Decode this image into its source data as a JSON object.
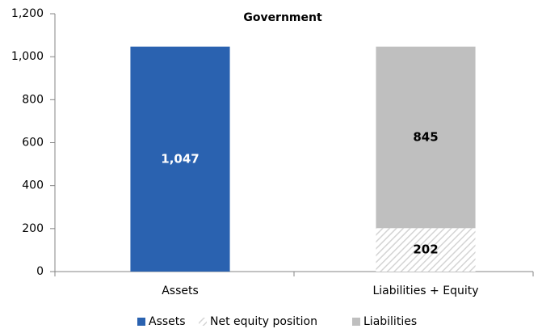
{
  "chart_data": {
    "type": "stacked_bar",
    "title": "Government",
    "categories": [
      "Assets",
      "Liabilities + Equity"
    ],
    "series": [
      {
        "name": "Assets",
        "color": "#2a62b0",
        "values": [
          1047,
          null
        ],
        "value_labels": [
          "1,047",
          null
        ]
      },
      {
        "name": "Net equity position",
        "color": "#d4d4d4",
        "pattern": "hatch",
        "values": [
          null,
          202
        ]
      },
      {
        "name": "Liabilities",
        "color": "#bfbfbf",
        "values": [
          null,
          845
        ]
      }
    ],
    "ylim": [
      0,
      1200
    ],
    "yticks": [
      0,
      200,
      400,
      600,
      800,
      {
        "value": 1000,
        "label": "1,000"
      },
      {
        "value": 1200,
        "label": "1,200"
      }
    ],
    "grid": false,
    "legend": "bottom"
  }
}
